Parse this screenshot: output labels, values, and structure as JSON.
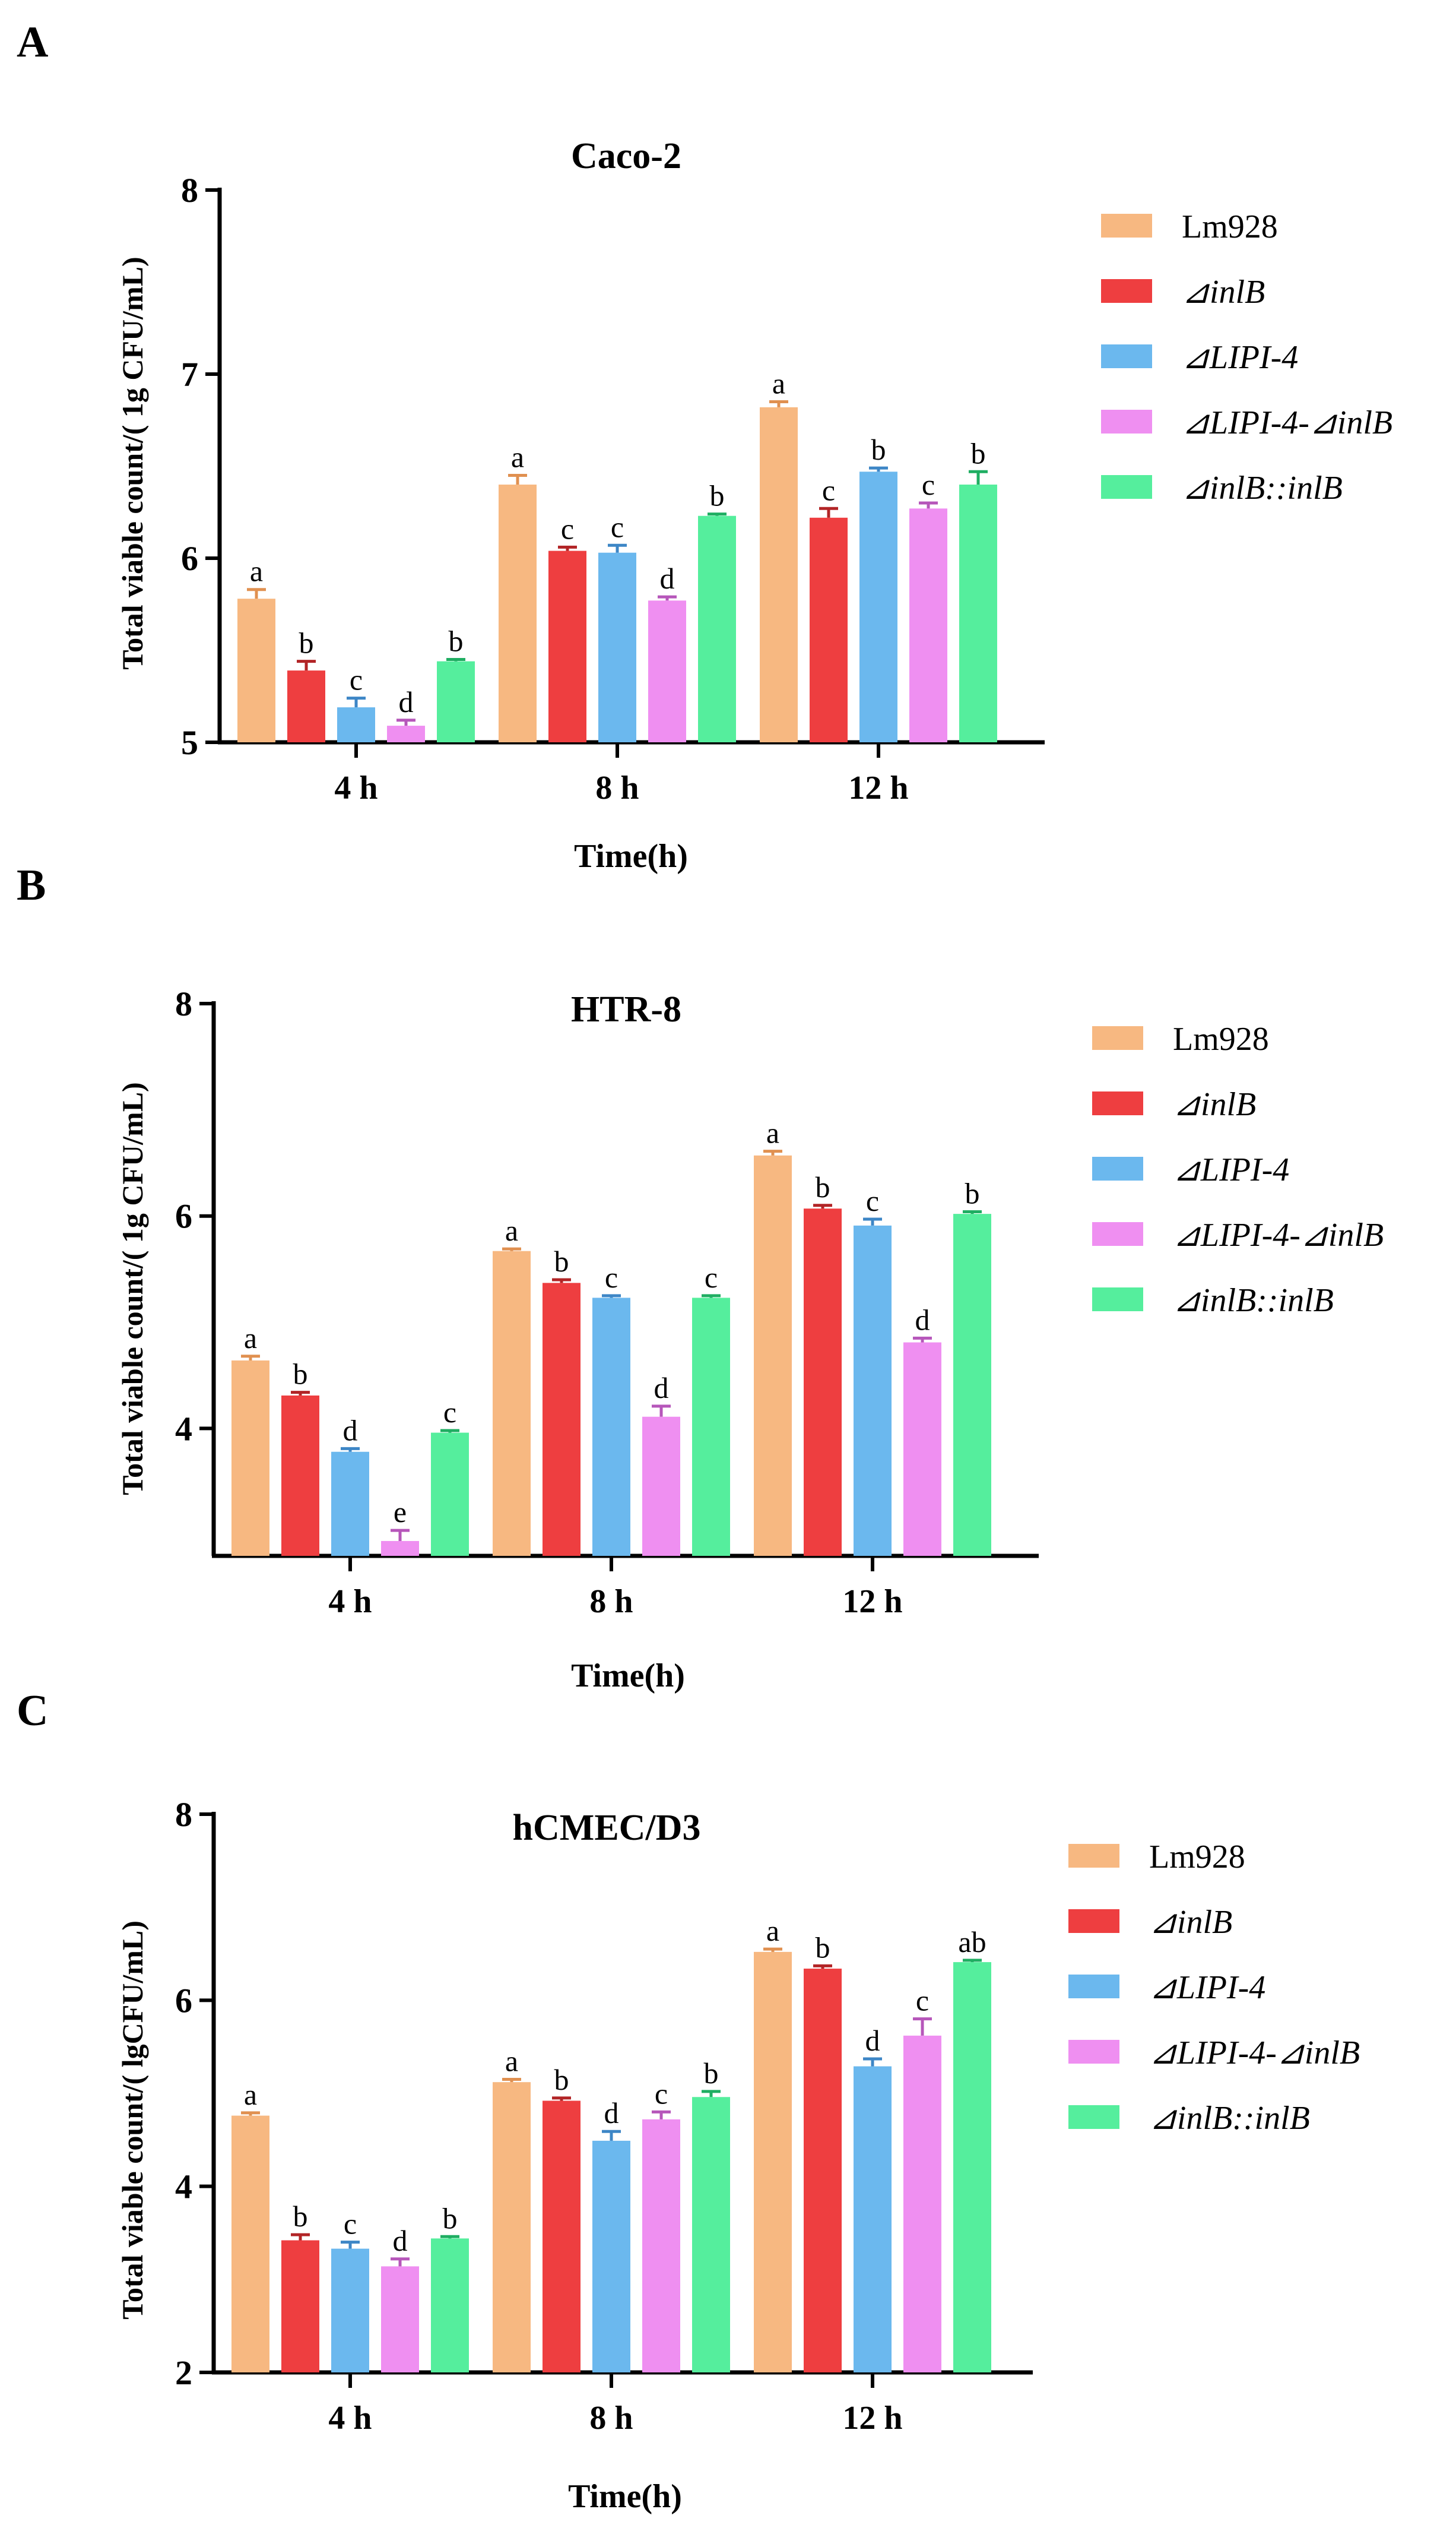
{
  "series_styles": [
    {
      "name": "Lm928",
      "fill": "#f7b881",
      "err": "#e09050",
      "italic": false
    },
    {
      "name": "⊿inlB",
      "fill": "#ee3e40",
      "err": "#b22426",
      "italic": true
    },
    {
      "name": "⊿LIPI-4",
      "fill": "#6bb8ee",
      "err": "#3d86c6",
      "italic": true
    },
    {
      "name": "⊿LIPI-4-⊿inlB",
      "fill": "#ef8ff1",
      "err": "#b656ba",
      "italic": true
    },
    {
      "name": "⊿inlB::inlB",
      "fill": "#55ee9d",
      "err": "#1fae62",
      "italic": true
    }
  ],
  "chart_data": [
    {
      "panel": "A",
      "type": "bar",
      "title": "Caco-2",
      "xlabel": "Time(h)",
      "ylabel": "Total viable count/( 1g CFU/mL)",
      "ylim": [
        5,
        8
      ],
      "yticks": [
        "5",
        "6",
        "7",
        "8"
      ],
      "categories": [
        "4 h",
        "8 h",
        "12 h"
      ],
      "series": [
        {
          "name": "Lm928",
          "values": [
            5.78,
            6.4,
            6.82
          ],
          "errors": [
            0.05,
            0.05,
            0.03
          ],
          "labels": [
            "a",
            "a",
            "a"
          ]
        },
        {
          "name": "⊿inlB",
          "values": [
            5.39,
            6.04,
            6.22
          ],
          "errors": [
            0.05,
            0.02,
            0.05
          ],
          "labels": [
            "b",
            "c",
            "c"
          ]
        },
        {
          "name": "⊿LIPI-4",
          "values": [
            5.19,
            6.03,
            6.47
          ],
          "errors": [
            0.05,
            0.04,
            0.02
          ],
          "labels": [
            "c",
            "c",
            "b"
          ]
        },
        {
          "name": "⊿LIPI-4-⊿inlB",
          "values": [
            5.09,
            5.77,
            6.27
          ],
          "errors": [
            0.03,
            0.02,
            0.03
          ],
          "labels": [
            "d",
            "d",
            "c"
          ]
        },
        {
          "name": "⊿inlB::inlB",
          "values": [
            5.44,
            6.23,
            6.4
          ],
          "errors": [
            0.01,
            0.01,
            0.07
          ],
          "labels": [
            "b",
            "b",
            "b"
          ]
        }
      ],
      "legend_position": "right"
    },
    {
      "panel": "B",
      "type": "bar",
      "title": "HTR-8",
      "xlabel": "Time(h)",
      "ylabel": "Total viable count/( 1g CFU/mL)",
      "ylim": [
        2.8,
        8
      ],
      "yticks": [
        "4",
        "6",
        "8"
      ],
      "categories": [
        "4 h",
        "8 h",
        "12 h"
      ],
      "series": [
        {
          "name": "Lm928",
          "values": [
            4.64,
            5.67,
            6.57
          ],
          "errors": [
            0.04,
            0.02,
            0.04
          ],
          "labels": [
            "a",
            "a",
            "a"
          ]
        },
        {
          "name": "⊿inlB",
          "values": [
            4.31,
            5.37,
            6.07
          ],
          "errors": [
            0.03,
            0.03,
            0.03
          ],
          "labels": [
            "b",
            "b",
            "b"
          ]
        },
        {
          "name": "⊿LIPI-4",
          "values": [
            3.78,
            5.23,
            5.91
          ],
          "errors": [
            0.03,
            0.02,
            0.06
          ],
          "labels": [
            "d",
            "c",
            "c"
          ]
        },
        {
          "name": "⊿LIPI-4-⊿inlB",
          "values": [
            2.94,
            4.11,
            4.81
          ],
          "errors": [
            0.1,
            0.1,
            0.04
          ],
          "labels": [
            "e",
            "d",
            "d"
          ]
        },
        {
          "name": "⊿inlB::inlB",
          "values": [
            3.96,
            5.23,
            6.02
          ],
          "errors": [
            0.02,
            0.02,
            0.02
          ],
          "labels": [
            "c",
            "c",
            "b"
          ]
        }
      ],
      "legend_position": "right"
    },
    {
      "panel": "C",
      "type": "bar",
      "title": "hCMEC/D3",
      "xlabel": "Time(h)",
      "ylabel": "Total viable count/( lgCFU/mL)",
      "ylim": [
        2,
        8
      ],
      "yticks": [
        "2",
        "4",
        "6",
        "8"
      ],
      "categories": [
        "4 h",
        "8 h",
        "12 h"
      ],
      "series": [
        {
          "name": "Lm928",
          "values": [
            4.76,
            5.12,
            6.52
          ],
          "errors": [
            0.03,
            0.03,
            0.03
          ],
          "labels": [
            "a",
            "a",
            "a"
          ]
        },
        {
          "name": "⊿inlB",
          "values": [
            3.42,
            4.92,
            6.34
          ],
          "errors": [
            0.06,
            0.03,
            0.03
          ],
          "labels": [
            "b",
            "b",
            "b"
          ]
        },
        {
          "name": "⊿LIPI-4",
          "values": [
            3.33,
            4.49,
            5.29
          ],
          "errors": [
            0.07,
            0.1,
            0.08
          ],
          "labels": [
            "c",
            "d",
            "d"
          ]
        },
        {
          "name": "⊿LIPI-4-⊿inlB",
          "values": [
            3.14,
            4.72,
            5.62
          ],
          "errors": [
            0.08,
            0.08,
            0.18
          ],
          "labels": [
            "d",
            "c",
            "c"
          ]
        },
        {
          "name": "⊿inlB::inlB",
          "values": [
            3.44,
            4.96,
            6.41
          ],
          "errors": [
            0.02,
            0.06,
            0.02
          ],
          "labels": [
            "b",
            "b",
            "ab"
          ]
        }
      ],
      "legend_position": "right"
    }
  ]
}
